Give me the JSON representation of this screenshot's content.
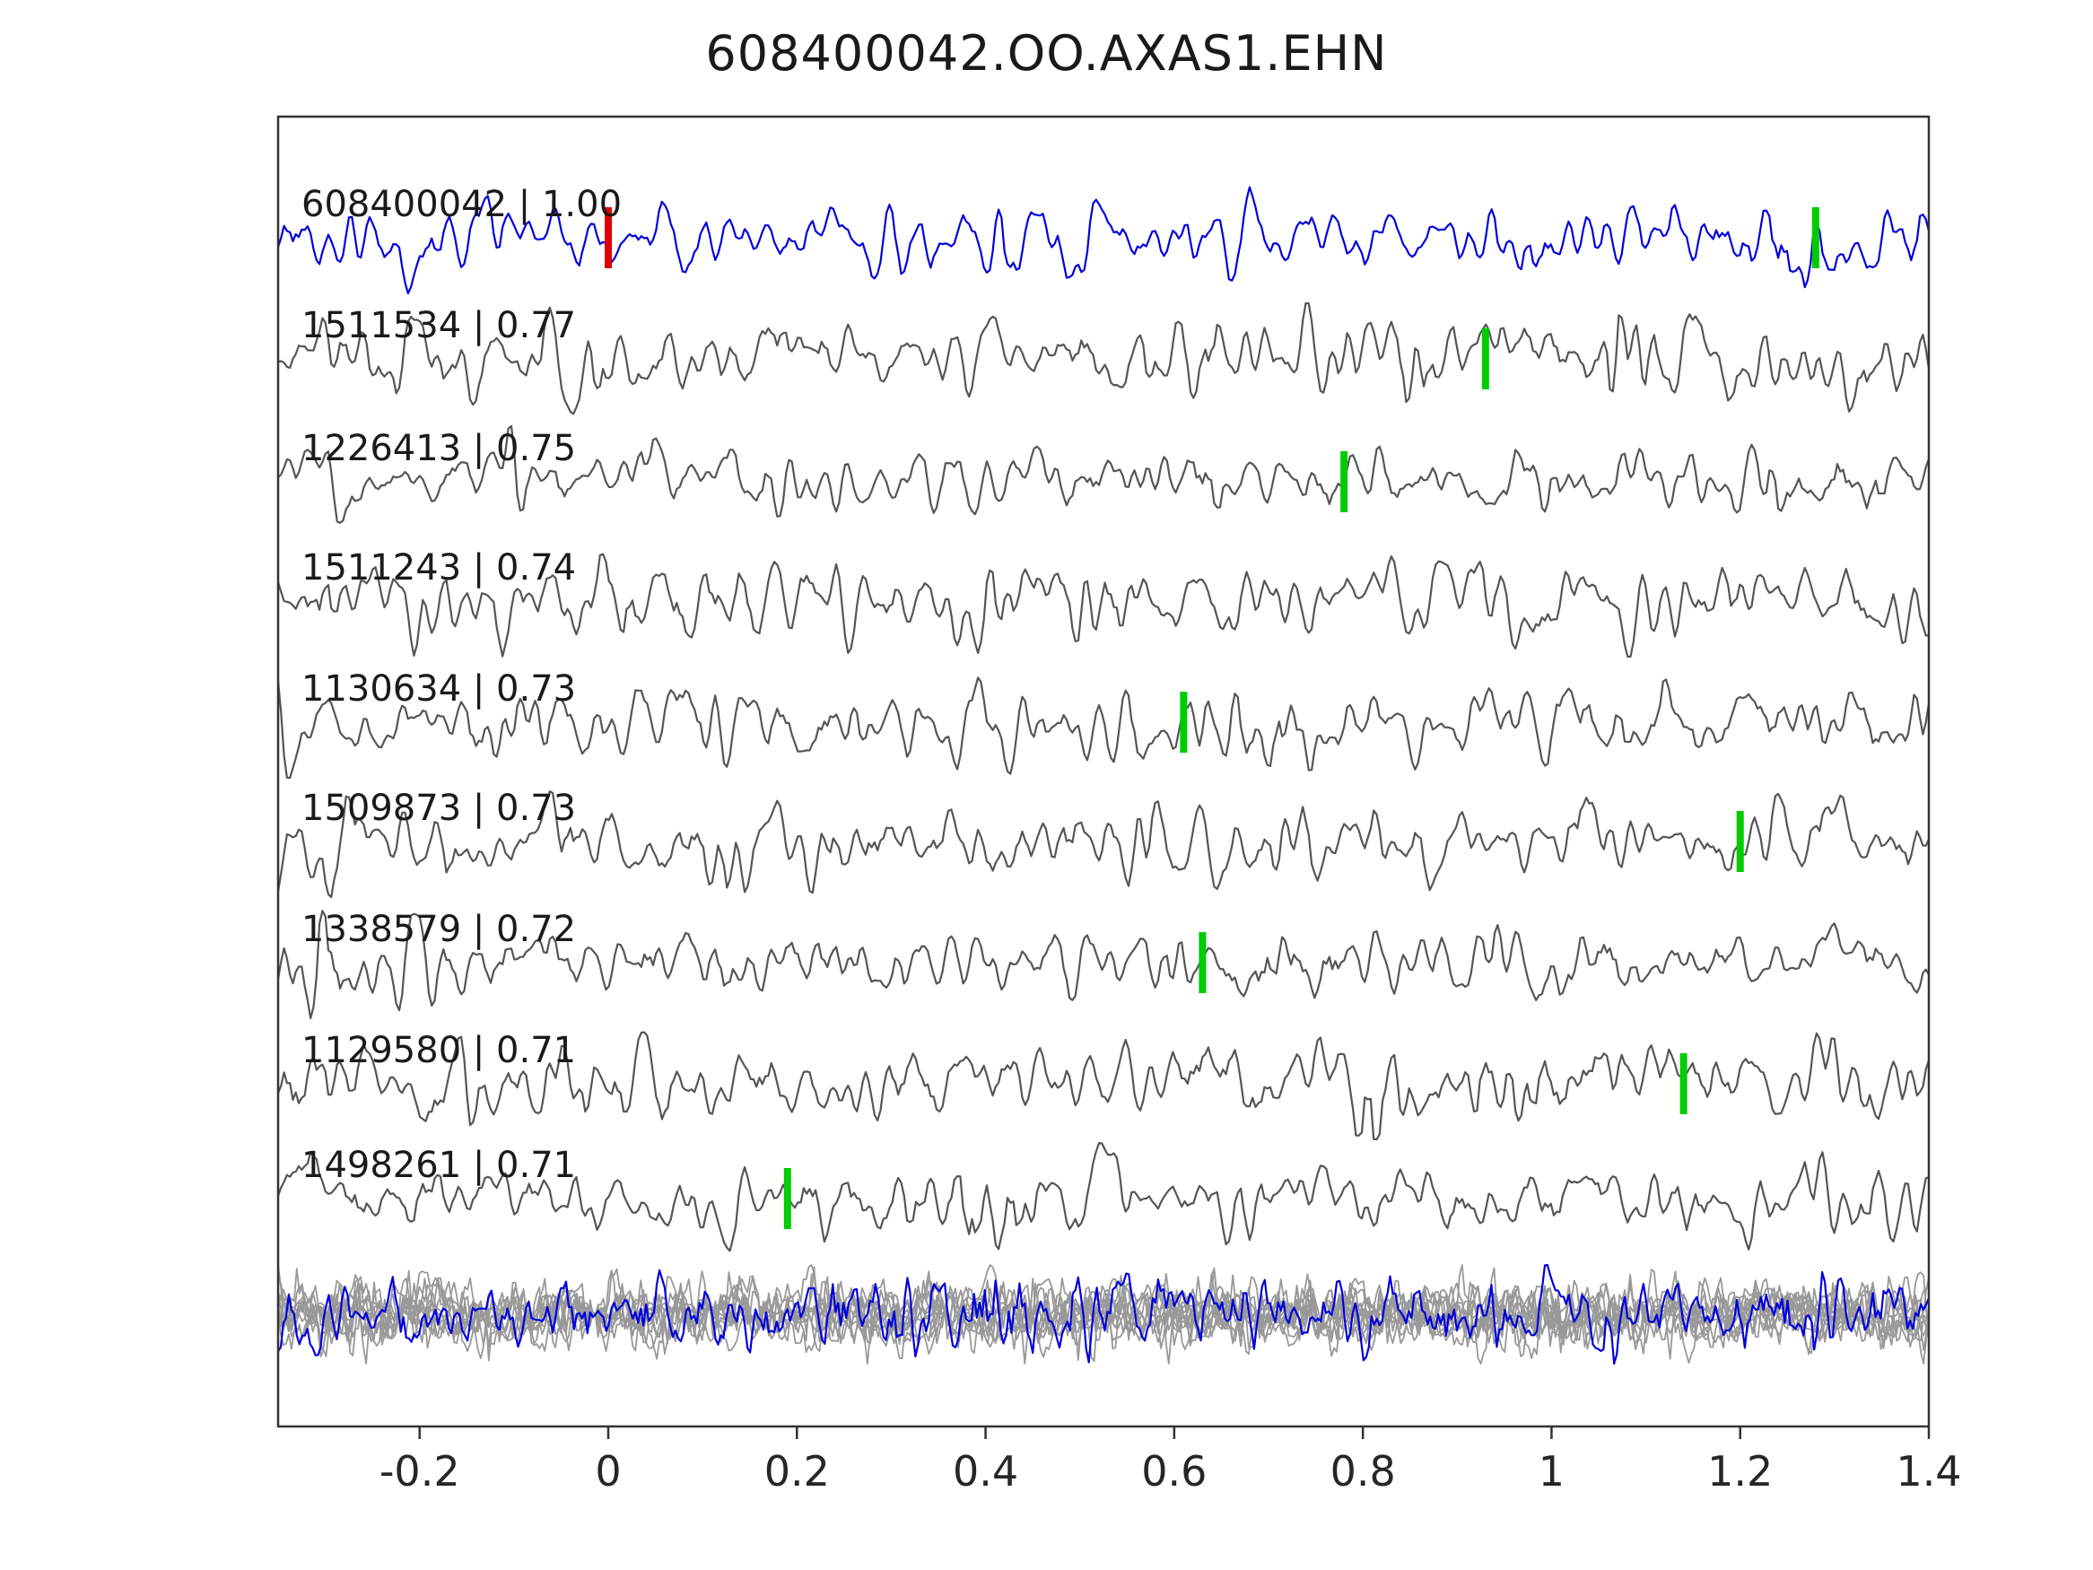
{
  "title": "608400042.OO.AXAS1.EHN",
  "chart_data": {
    "type": "line",
    "title": "608400042.OO.AXAS1.EHN",
    "description": "Stacked seismic waveform traces: template event (blue) with matched events ranked by cross-correlation, green ticks mark picks, red tick marks time zero; bottom band overlays all traces (gray) with the template in blue.",
    "xlabel": "",
    "ylabel": "",
    "grid": false,
    "x_range": [
      -0.35,
      1.4
    ],
    "x_tick_labels": [
      "-0.2",
      "0",
      "0.2",
      "0.4",
      "0.6",
      "0.8",
      "1",
      "1.2",
      "1.4"
    ],
    "x_tick_values": [
      -0.2,
      0.0,
      0.2,
      0.4,
      0.6,
      0.8,
      1.0,
      1.2,
      1.4
    ],
    "axis_color": "#333333",
    "pick_color": "#00cc00",
    "zero_marker_color": "#dd0000",
    "traces": [
      {
        "label": "608400042 | 1.00",
        "event_id": "608400042",
        "similarity": 1.0,
        "color": "#0000dd",
        "picks": [
          {
            "x": 0.0,
            "color": "#dd0000"
          },
          {
            "x": 1.28,
            "color": "#00cc00"
          }
        ]
      },
      {
        "label": "1511534 | 0.77",
        "event_id": "1511534",
        "similarity": 0.77,
        "color": "#555555",
        "picks": [
          {
            "x": 0.93,
            "color": "#00cc00"
          }
        ]
      },
      {
        "label": "1226413 | 0.75",
        "event_id": "1226413",
        "similarity": 0.75,
        "color": "#555555",
        "picks": [
          {
            "x": 0.78,
            "color": "#00cc00"
          }
        ]
      },
      {
        "label": "1511243 | 0.74",
        "event_id": "1511243",
        "similarity": 0.74,
        "color": "#555555",
        "picks": []
      },
      {
        "label": "1130634 | 0.73",
        "event_id": "1130634",
        "similarity": 0.73,
        "color": "#555555",
        "picks": [
          {
            "x": 0.61,
            "color": "#00cc00"
          }
        ]
      },
      {
        "label": "1509873 | 0.73",
        "event_id": "1509873",
        "similarity": 0.73,
        "color": "#555555",
        "picks": [
          {
            "x": 1.2,
            "color": "#00cc00"
          }
        ]
      },
      {
        "label": "1338579 | 0.72",
        "event_id": "1338579",
        "similarity": 0.72,
        "color": "#555555",
        "picks": [
          {
            "x": 0.63,
            "color": "#00cc00"
          }
        ]
      },
      {
        "label": "1129580 | 0.71",
        "event_id": "1129580",
        "similarity": 0.71,
        "color": "#555555",
        "picks": [
          {
            "x": 1.14,
            "color": "#00cc00"
          }
        ]
      },
      {
        "label": "1498261 | 0.71",
        "event_id": "1498261",
        "similarity": 0.71,
        "color": "#555555",
        "picks": [
          {
            "x": 0.19,
            "color": "#00cc00"
          }
        ]
      }
    ],
    "overlay": {
      "gray_trace_count": 10,
      "gray_color": "#999999",
      "blue_color": "#0000dd"
    }
  }
}
